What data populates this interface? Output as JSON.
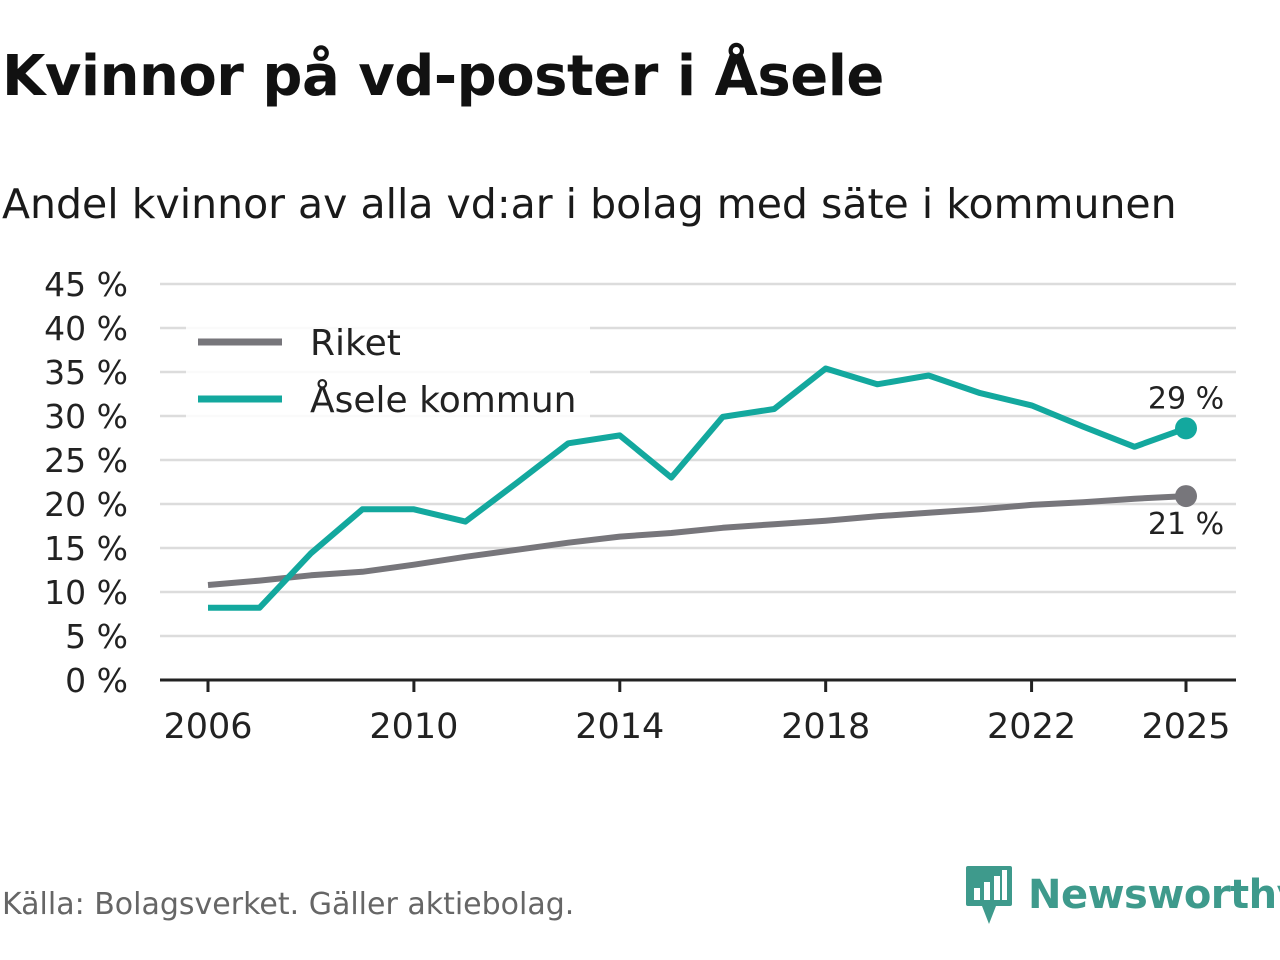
{
  "header": {
    "title": "Kvinnor på vd-poster i Åsele",
    "subtitle": "Andel kvinnor av alla vd:ar i bolag med säte i kommunen"
  },
  "footer": {
    "source": "Källa: Bolagsverket. Gäller aktiebolag.",
    "brand": "Newsworthy"
  },
  "colors": {
    "riket": "#77767b",
    "asele": "#13a89e",
    "grid": "#dcdcdc",
    "axis": "#222222",
    "brand": "#3e9a8c"
  },
  "chart_data": {
    "type": "line",
    "title": "Kvinnor på vd-poster i Åsele",
    "subtitle": "Andel kvinnor av alla vd:ar i bolag med säte i kommunen",
    "xlabel": "",
    "ylabel": "",
    "x": [
      2006,
      2007,
      2008,
      2009,
      2010,
      2011,
      2012,
      2013,
      2014,
      2015,
      2016,
      2017,
      2018,
      2019,
      2020,
      2021,
      2022,
      2023,
      2024,
      2025
    ],
    "xlim": [
      2006,
      2025
    ],
    "xticks": [
      2006,
      2010,
      2014,
      2018,
      2022,
      2025
    ],
    "xtick_labels": [
      "2006",
      "2010",
      "2014",
      "2018",
      "2022",
      "2025"
    ],
    "ylim": [
      0,
      45
    ],
    "yticks": [
      0,
      5,
      10,
      15,
      20,
      25,
      30,
      35,
      40,
      45
    ],
    "ytick_labels": [
      "0 %",
      "5 %",
      "10 %",
      "15 %",
      "20 %",
      "25 %",
      "30 %",
      "35 %",
      "40 %",
      "45 %"
    ],
    "grid": true,
    "legend_position": "top-left",
    "series": [
      {
        "name": "Riket",
        "color": "#77767b",
        "values": [
          10.8,
          11.3,
          11.9,
          12.3,
          13.1,
          14.0,
          14.8,
          15.6,
          16.3,
          16.7,
          17.3,
          17.7,
          18.1,
          18.6,
          19.0,
          19.4,
          19.9,
          20.2,
          20.6,
          20.9
        ],
        "end_label": "21 %"
      },
      {
        "name": "Åsele kommun",
        "color": "#13a89e",
        "values": [
          8.2,
          8.2,
          14.4,
          19.4,
          19.4,
          18.0,
          22.4,
          26.9,
          27.8,
          23.0,
          29.9,
          30.8,
          35.4,
          33.6,
          34.6,
          32.6,
          31.2,
          28.8,
          26.5,
          28.6
        ],
        "end_label": "29 %"
      }
    ]
  }
}
